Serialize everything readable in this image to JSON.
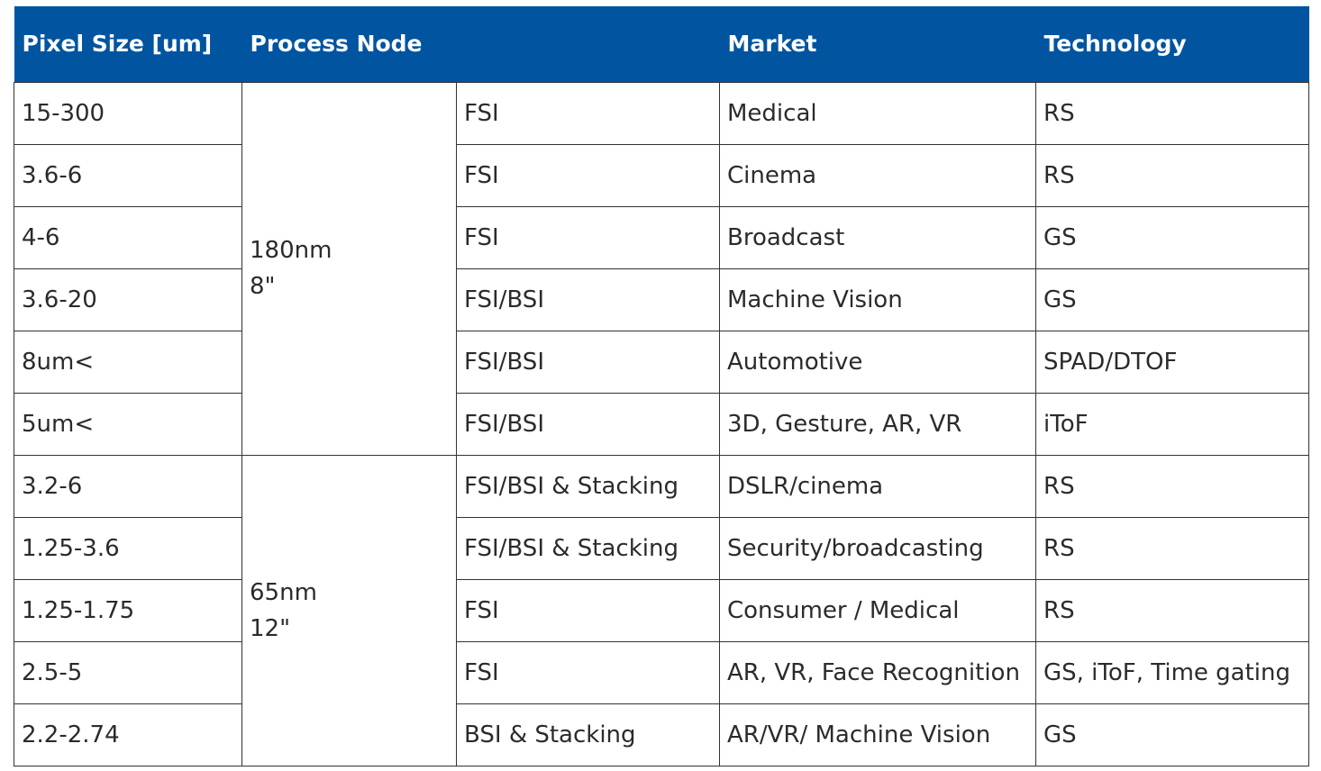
{
  "headers": {
    "pixel_size": "Pixel Size [um]",
    "process_node": "Process Node",
    "illumination": "",
    "market": "Market",
    "technology": "Technology"
  },
  "groups": [
    {
      "node": "180nm",
      "wafer": "8\"",
      "rows": [
        {
          "pixel": "15-300",
          "illum": "FSI",
          "market": "Medical",
          "tech": "RS"
        },
        {
          "pixel": "3.6-6",
          "illum": "FSI",
          "market": "Cinema",
          "tech": "RS"
        },
        {
          "pixel": "4-6",
          "illum": "FSI",
          "market": "Broadcast",
          "tech": "GS"
        },
        {
          "pixel": "3.6-20",
          "illum": "FSI/BSI",
          "market": "Machine Vision",
          "tech": "GS"
        },
        {
          "pixel": "8um<",
          "illum": "FSI/BSI",
          "market": "Automotive",
          "tech": "SPAD/DTOF"
        },
        {
          "pixel": "5um<",
          "illum": "FSI/BSI",
          "market": "3D, Gesture, AR, VR",
          "tech": "iToF"
        }
      ]
    },
    {
      "node": "65nm",
      "wafer": "12\"",
      "rows": [
        {
          "pixel": "3.2-6",
          "illum": "FSI/BSI & Stacking",
          "market": "DSLR/cinema",
          "tech": "RS"
        },
        {
          "pixel": "1.25-3.6",
          "illum": "FSI/BSI & Stacking",
          "market": "Security/broadcasting",
          "tech": "RS"
        },
        {
          "pixel": "1.25-1.75",
          "illum": "FSI",
          "market": "Consumer / Medical",
          "tech": "RS"
        },
        {
          "pixel": "2.5-5",
          "illum": "FSI",
          "market": "AR, VR, Face Recognition",
          "tech": "GS, iToF, Time gating"
        },
        {
          "pixel": "2.2-2.74",
          "illum": "BSI & Stacking",
          "market": "AR/VR/ Machine Vision",
          "tech": "GS"
        }
      ]
    }
  ]
}
